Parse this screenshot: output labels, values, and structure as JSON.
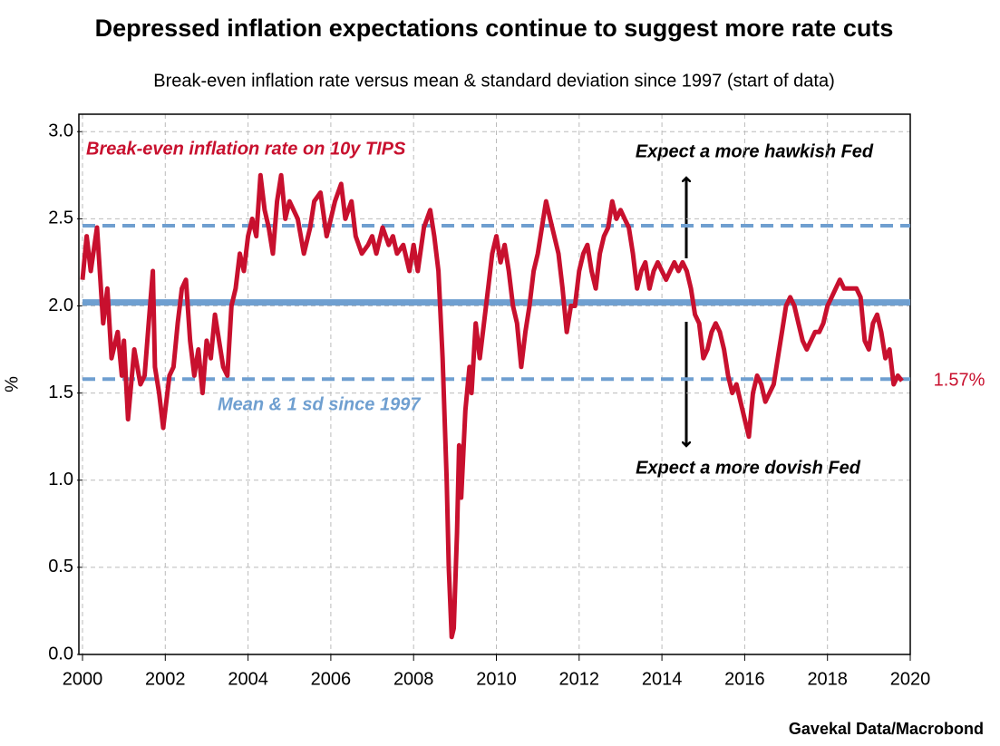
{
  "chart_data": {
    "type": "line",
    "title": "Depressed inflation expectations continue to suggest more rate cuts",
    "subtitle": "Break-even inflation rate versus mean & standard deviation since 1997 (start of data)",
    "y_label": "%",
    "source": "Gavekal Data/Macrobond",
    "xlim": [
      2000,
      2020
    ],
    "xticks": [
      2000,
      2002,
      2004,
      2006,
      2008,
      2010,
      2012,
      2014,
      2016,
      2018,
      2020
    ],
    "ylim": [
      0,
      3.1
    ],
    "yticks": [
      {
        "value": 0,
        "label": "0.0"
      },
      0.5,
      {
        "value": 1,
        "label": "1.0"
      },
      1.5,
      {
        "value": 2,
        "label": "2.0"
      },
      2.5,
      {
        "value": 3,
        "label": "3.0"
      }
    ],
    "grid": true,
    "x": [
      2000.0,
      2000.1,
      2000.2,
      2000.35,
      2000.5,
      2000.6,
      2000.7,
      2000.85,
      2000.95,
      2001.0,
      2001.1,
      2001.25,
      2001.4,
      2001.5,
      2001.6,
      2001.7,
      2001.75,
      2001.85,
      2001.95,
      2002.1,
      2002.2,
      2002.3,
      2002.4,
      2002.5,
      2002.6,
      2002.7,
      2002.8,
      2002.9,
      2003.0,
      2003.1,
      2003.2,
      2003.3,
      2003.4,
      2003.5,
      2003.6,
      2003.7,
      2003.8,
      2003.9,
      2004.0,
      2004.1,
      2004.2,
      2004.3,
      2004.4,
      2004.5,
      2004.6,
      2004.7,
      2004.8,
      2004.9,
      2005.0,
      2005.2,
      2005.35,
      2005.5,
      2005.6,
      2005.75,
      2005.9,
      2006.0,
      2006.1,
      2006.25,
      2006.35,
      2006.5,
      2006.6,
      2006.75,
      2006.9,
      2007.0,
      2007.1,
      2007.25,
      2007.4,
      2007.5,
      2007.6,
      2007.75,
      2007.9,
      2008.0,
      2008.1,
      2008.25,
      2008.4,
      2008.5,
      2008.6,
      2008.7,
      2008.8,
      2008.85,
      2008.92,
      2008.97,
      2009.05,
      2009.1,
      2009.15,
      2009.25,
      2009.35,
      2009.4,
      2009.5,
      2009.6,
      2009.7,
      2009.8,
      2009.9,
      2010.0,
      2010.1,
      2010.2,
      2010.3,
      2010.4,
      2010.5,
      2010.6,
      2010.7,
      2010.8,
      2010.9,
      2011.0,
      2011.1,
      2011.2,
      2011.3,
      2011.4,
      2011.5,
      2011.6,
      2011.7,
      2011.8,
      2011.9,
      2012.0,
      2012.1,
      2012.2,
      2012.3,
      2012.4,
      2012.5,
      2012.6,
      2012.7,
      2012.8,
      2012.9,
      2013.0,
      2013.1,
      2013.2,
      2013.3,
      2013.4,
      2013.5,
      2013.6,
      2013.7,
      2013.8,
      2013.9,
      2014.0,
      2014.1,
      2014.2,
      2014.3,
      2014.4,
      2014.5,
      2014.6,
      2014.7,
      2014.8,
      2014.9,
      2015.0,
      2015.1,
      2015.2,
      2015.3,
      2015.4,
      2015.5,
      2015.6,
      2015.7,
      2015.8,
      2015.9,
      2016.0,
      2016.1,
      2016.2,
      2016.3,
      2016.4,
      2016.5,
      2016.6,
      2016.7,
      2016.8,
      2016.9,
      2017.0,
      2017.1,
      2017.2,
      2017.3,
      2017.4,
      2017.5,
      2017.6,
      2017.7,
      2017.8,
      2017.9,
      2018.0,
      2018.1,
      2018.2,
      2018.3,
      2018.4,
      2018.5,
      2018.6,
      2018.7,
      2018.8,
      2018.9,
      2019.0,
      2019.1,
      2019.2,
      2019.3,
      2019.4,
      2019.5,
      2019.6,
      2019.7,
      2019.8
    ],
    "series": [
      {
        "name": "Break-even inflation rate on 10y TIPS",
        "color": "#c8102e",
        "values": [
          2.15,
          2.4,
          2.2,
          2.45,
          1.9,
          2.1,
          1.7,
          1.85,
          1.6,
          1.8,
          1.35,
          1.75,
          1.55,
          1.6,
          1.9,
          2.2,
          1.65,
          1.5,
          1.3,
          1.6,
          1.65,
          1.9,
          2.1,
          2.15,
          1.8,
          1.6,
          1.75,
          1.5,
          1.8,
          1.7,
          1.95,
          1.8,
          1.65,
          1.6,
          2.0,
          2.1,
          2.3,
          2.2,
          2.4,
          2.5,
          2.4,
          2.75,
          2.55,
          2.45,
          2.3,
          2.6,
          2.75,
          2.5,
          2.6,
          2.5,
          2.3,
          2.45,
          2.6,
          2.65,
          2.4,
          2.5,
          2.6,
          2.7,
          2.5,
          2.6,
          2.4,
          2.3,
          2.35,
          2.4,
          2.3,
          2.45,
          2.35,
          2.4,
          2.3,
          2.35,
          2.2,
          2.35,
          2.2,
          2.45,
          2.55,
          2.4,
          2.2,
          1.7,
          1.0,
          0.5,
          0.1,
          0.15,
          0.7,
          1.2,
          0.9,
          1.4,
          1.65,
          1.5,
          1.9,
          1.7,
          1.9,
          2.1,
          2.3,
          2.4,
          2.25,
          2.35,
          2.2,
          2.0,
          1.9,
          1.65,
          1.85,
          2.0,
          2.2,
          2.3,
          2.45,
          2.6,
          2.5,
          2.4,
          2.3,
          2.1,
          1.85,
          2.0,
          2.0,
          2.2,
          2.3,
          2.35,
          2.2,
          2.1,
          2.3,
          2.4,
          2.45,
          2.6,
          2.5,
          2.55,
          2.5,
          2.45,
          2.3,
          2.1,
          2.2,
          2.25,
          2.1,
          2.2,
          2.25,
          2.2,
          2.15,
          2.2,
          2.25,
          2.2,
          2.25,
          2.2,
          2.1,
          1.95,
          1.9,
          1.7,
          1.75,
          1.85,
          1.9,
          1.85,
          1.75,
          1.6,
          1.5,
          1.55,
          1.45,
          1.35,
          1.25,
          1.5,
          1.6,
          1.55,
          1.45,
          1.5,
          1.55,
          1.7,
          1.85,
          2.0,
          2.05,
          2.0,
          1.9,
          1.8,
          1.75,
          1.8,
          1.85,
          1.85,
          1.9,
          2.0,
          2.05,
          2.1,
          2.15,
          2.1,
          2.1,
          2.1,
          2.1,
          2.05,
          1.8,
          1.75,
          1.9,
          1.95,
          1.85,
          1.7,
          1.75,
          1.55,
          1.6,
          1.57
        ]
      }
    ],
    "last_value_label": {
      "value": 1.57,
      "label": "1.57%"
    },
    "reference_lines": {
      "label": "Mean & 1 sd since 1997",
      "color": "#6f9fd0",
      "lines": [
        {
          "value": 2.46,
          "style": "dashed"
        },
        {
          "value": 2.02,
          "style": "solid"
        },
        {
          "value": 1.58,
          "style": "dashed"
        }
      ]
    },
    "annotations": [
      "Expect a more hawkish Fed",
      "Expect a more dovish Fed"
    ]
  }
}
